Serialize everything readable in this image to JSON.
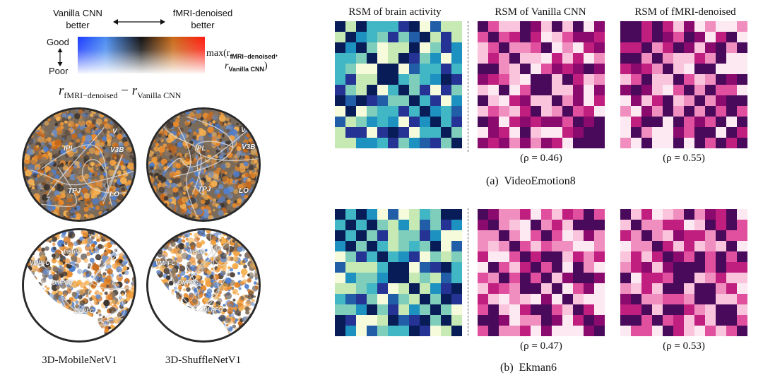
{
  "legend": {
    "left_label": "Vanilla CNN\nbetter",
    "right_label": "fMRI-denoised\nbetter",
    "good_label": "Good",
    "poor_label": "Poor",
    "max_label_main": "max(r",
    "max_label_sub1": "fMRI−denoised",
    "max_label_r2": "r",
    "max_label_sub2": "Vanilla CNN",
    "diff_r1": "r",
    "diff_sub1": "fMRI−denoised",
    "diff_minus": "−",
    "diff_r2": "r",
    "diff_sub2": "Vanilla CNN"
  },
  "brains": {
    "labels_top": [
      "IPL",
      "V3B",
      "TPJ",
      "LO",
      "V"
    ],
    "labels_bottom": [
      "Insula",
      "VMPFC",
      "DMPFC",
      "DLPFC"
    ],
    "model_left": "3D-MobileNetV1",
    "model_right": "3D-ShuffleNetV1"
  },
  "rsm": {
    "col_titles": [
      "RSM of brain activity",
      "RSM of Vanilla CNN",
      "RSM of fMRI-denoised"
    ],
    "rows": [
      {
        "caption": "(a)  VideoEmotion8",
        "rho_vanilla": "(ρ  = 0.46)",
        "rho_denoised": "(ρ  = 0.55)"
      },
      {
        "caption": "(b)  Ekman6",
        "rho_vanilla": "(ρ  = 0.47)",
        "rho_denoised": "(ρ  = 0.53)"
      }
    ]
  },
  "colors": {
    "brain_cmap": [
      "#f6fbdc",
      "#c7e9b4",
      "#7fcdbb",
      "#41b6c4",
      "#1d91c0",
      "#225ea8",
      "#253494",
      "#081d58"
    ],
    "cnn_cmap": [
      "#fde9f1",
      "#f9c4dc",
      "#f08fbf",
      "#e0509f",
      "#c01f80",
      "#8a0a6e",
      "#4a0a5c"
    ]
  }
}
